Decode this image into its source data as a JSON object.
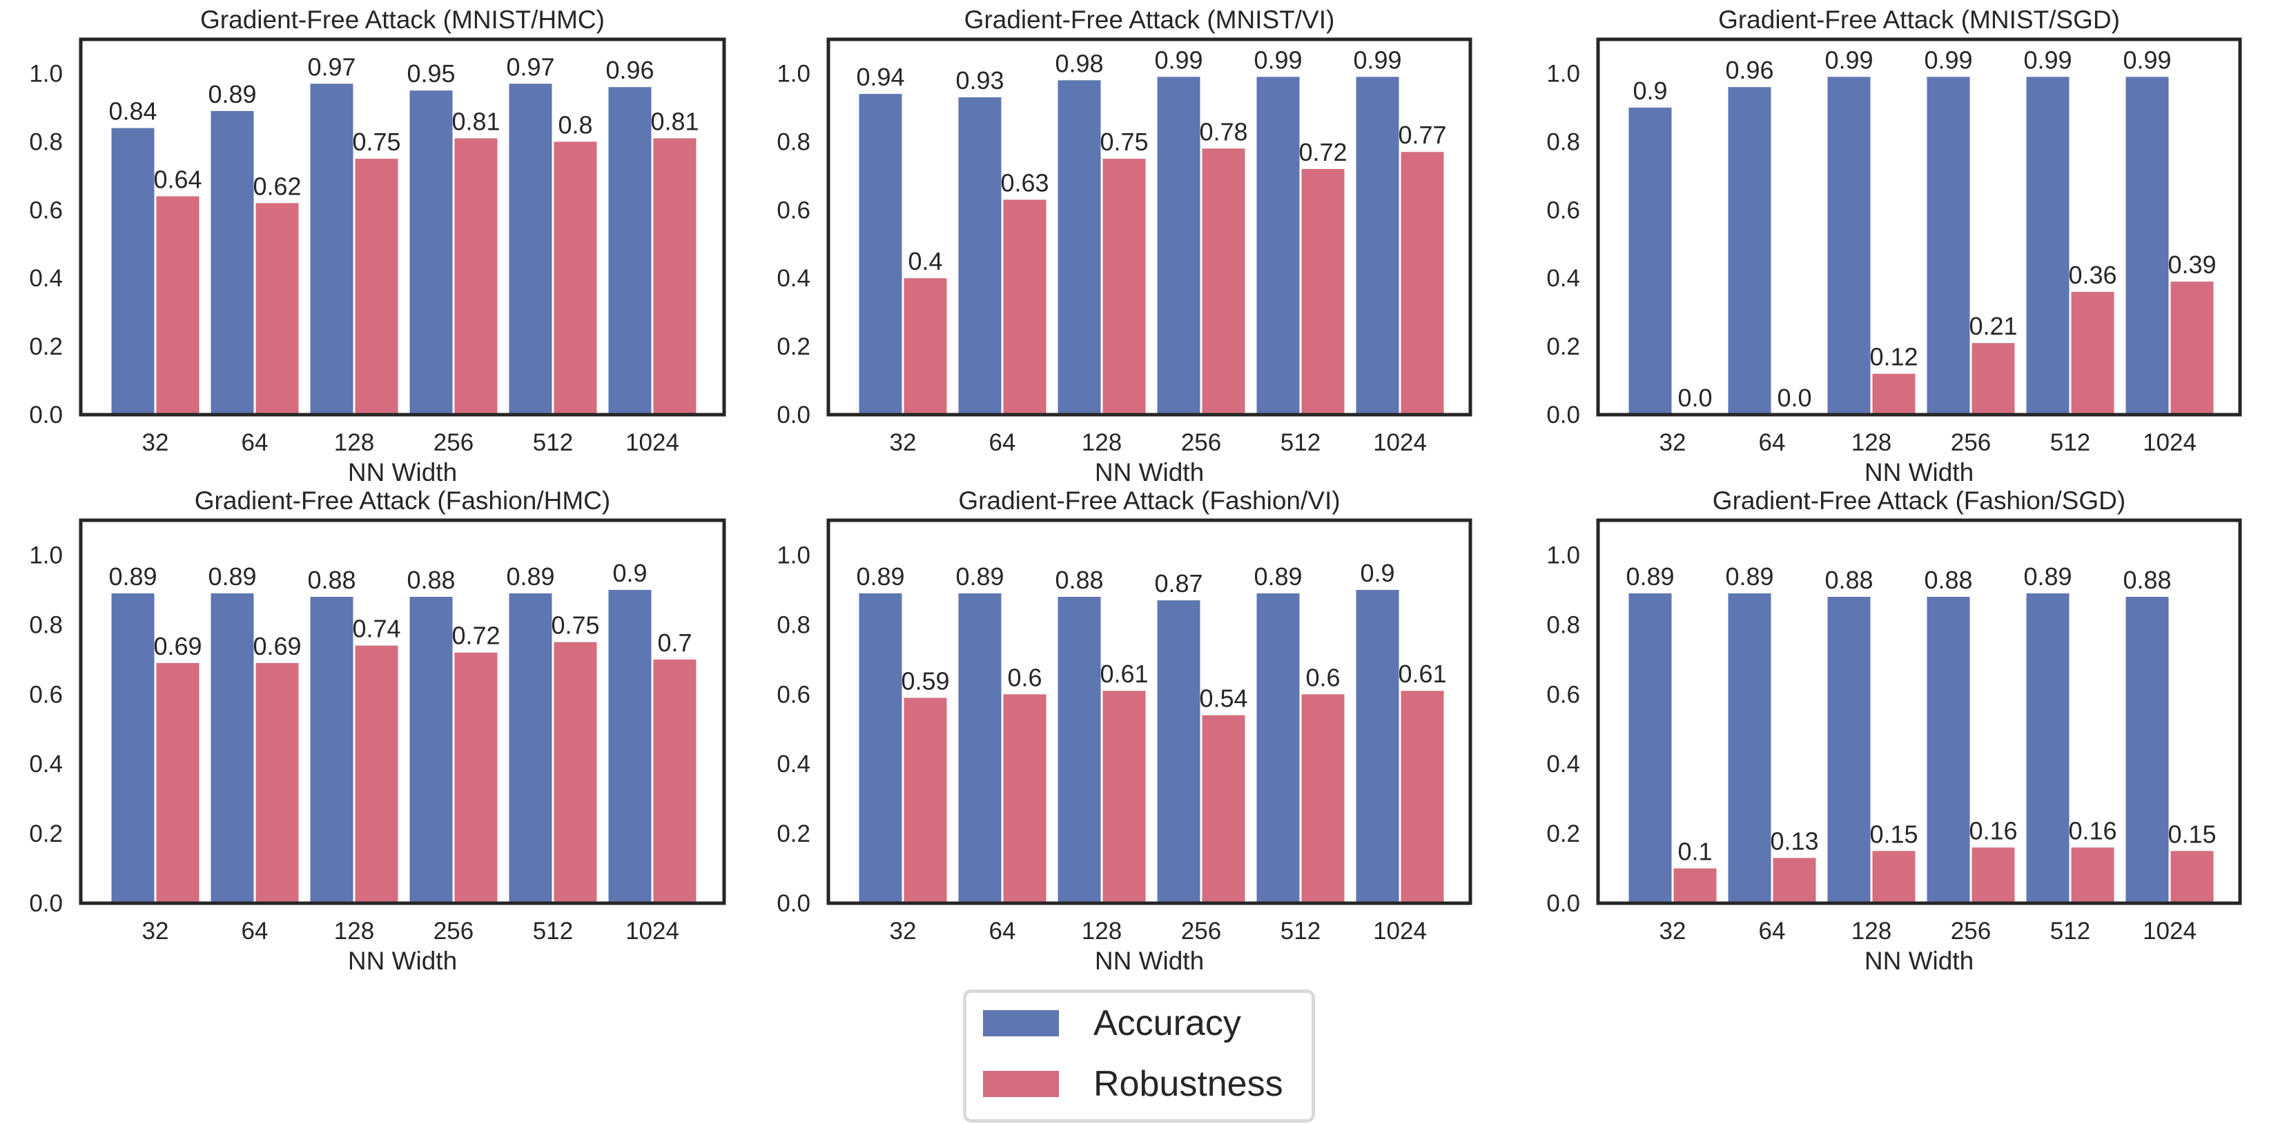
{
  "chart_data": [
    {
      "type": "bar",
      "title": "Gradient-Free Attack (MNIST/HMC)",
      "xlabel": "NN Width",
      "ylabel": "",
      "categories": [
        "32",
        "64",
        "128",
        "256",
        "512",
        "1024"
      ],
      "series": [
        {
          "name": "Accuracy",
          "values": [
            0.84,
            0.89,
            0.97,
            0.95,
            0.97,
            0.96
          ]
        },
        {
          "name": "Robustness",
          "values": [
            0.64,
            0.62,
            0.75,
            0.81,
            0.8,
            0.81
          ]
        }
      ],
      "labels": {
        "Accuracy": [
          "0.84",
          "0.89",
          "0.97",
          "0.95",
          "0.97",
          "0.96"
        ],
        "Robustness": [
          "0.64",
          "0.62",
          "0.75",
          "0.81",
          "0.8",
          "0.81"
        ]
      },
      "ylim": [
        0,
        1.1
      ],
      "yticks": [
        "0.0",
        "0.2",
        "0.4",
        "0.6",
        "0.8",
        "1.0"
      ],
      "grid": false
    },
    {
      "type": "bar",
      "title": "Gradient-Free Attack (MNIST/VI)",
      "xlabel": "NN Width",
      "ylabel": "",
      "categories": [
        "32",
        "64",
        "128",
        "256",
        "512",
        "1024"
      ],
      "series": [
        {
          "name": "Accuracy",
          "values": [
            0.94,
            0.93,
            0.98,
            0.99,
            0.99,
            0.99
          ]
        },
        {
          "name": "Robustness",
          "values": [
            0.4,
            0.63,
            0.75,
            0.78,
            0.72,
            0.77
          ]
        }
      ],
      "labels": {
        "Accuracy": [
          "0.94",
          "0.93",
          "0.98",
          "0.99",
          "0.99",
          "0.99"
        ],
        "Robustness": [
          "0.4",
          "0.63",
          "0.75",
          "0.78",
          "0.72",
          "0.77"
        ]
      },
      "ylim": [
        0,
        1.1
      ],
      "yticks": [
        "0.0",
        "0.2",
        "0.4",
        "0.6",
        "0.8",
        "1.0"
      ],
      "grid": false
    },
    {
      "type": "bar",
      "title": "Gradient-Free Attack (MNIST/SGD)",
      "xlabel": "NN Width",
      "ylabel": "",
      "categories": [
        "32",
        "64",
        "128",
        "256",
        "512",
        "1024"
      ],
      "series": [
        {
          "name": "Accuracy",
          "values": [
            0.9,
            0.96,
            0.99,
            0.99,
            0.99,
            0.99
          ]
        },
        {
          "name": "Robustness",
          "values": [
            0.0,
            0.0,
            0.12,
            0.21,
            0.36,
            0.39
          ]
        }
      ],
      "labels": {
        "Accuracy": [
          "0.9",
          "0.96",
          "0.99",
          "0.99",
          "0.99",
          "0.99"
        ],
        "Robustness": [
          "0.0",
          "0.0",
          "0.12",
          "0.21",
          "0.36",
          "0.39"
        ]
      },
      "ylim": [
        0,
        1.1
      ],
      "yticks": [
        "0.0",
        "0.2",
        "0.4",
        "0.6",
        "0.8",
        "1.0"
      ],
      "grid": false
    },
    {
      "type": "bar",
      "title": "Gradient-Free Attack (Fashion/HMC)",
      "xlabel": "NN Width",
      "ylabel": "",
      "categories": [
        "32",
        "64",
        "128",
        "256",
        "512",
        "1024"
      ],
      "series": [
        {
          "name": "Accuracy",
          "values": [
            0.89,
            0.89,
            0.88,
            0.88,
            0.89,
            0.9
          ]
        },
        {
          "name": "Robustness",
          "values": [
            0.69,
            0.69,
            0.74,
            0.72,
            0.75,
            0.7
          ]
        }
      ],
      "labels": {
        "Accuracy": [
          "0.89",
          "0.89",
          "0.88",
          "0.88",
          "0.89",
          "0.9"
        ],
        "Robustness": [
          "0.69",
          "0.69",
          "0.74",
          "0.72",
          "0.75",
          "0.7"
        ]
      },
      "ylim": [
        0,
        1.1
      ],
      "yticks": [
        "0.0",
        "0.2",
        "0.4",
        "0.6",
        "0.8",
        "1.0"
      ],
      "grid": false
    },
    {
      "type": "bar",
      "title": "Gradient-Free Attack (Fashion/VI)",
      "xlabel": "NN Width",
      "ylabel": "",
      "categories": [
        "32",
        "64",
        "128",
        "256",
        "512",
        "1024"
      ],
      "series": [
        {
          "name": "Accuracy",
          "values": [
            0.89,
            0.89,
            0.88,
            0.87,
            0.89,
            0.9
          ]
        },
        {
          "name": "Robustness",
          "values": [
            0.59,
            0.6,
            0.61,
            0.54,
            0.6,
            0.61
          ]
        }
      ],
      "labels": {
        "Accuracy": [
          "0.89",
          "0.89",
          "0.88",
          "0.87",
          "0.89",
          "0.9"
        ],
        "Robustness": [
          "0.59",
          "0.6",
          "0.61",
          "0.54",
          "0.6",
          "0.61"
        ]
      },
      "ylim": [
        0,
        1.1
      ],
      "yticks": [
        "0.0",
        "0.2",
        "0.4",
        "0.6",
        "0.8",
        "1.0"
      ],
      "grid": false
    },
    {
      "type": "bar",
      "title": "Gradient-Free Attack (Fashion/SGD)",
      "xlabel": "NN Width",
      "ylabel": "",
      "categories": [
        "32",
        "64",
        "128",
        "256",
        "512",
        "1024"
      ],
      "series": [
        {
          "name": "Accuracy",
          "values": [
            0.89,
            0.89,
            0.88,
            0.88,
            0.89,
            0.88
          ]
        },
        {
          "name": "Robustness",
          "values": [
            0.1,
            0.13,
            0.15,
            0.16,
            0.16,
            0.15
          ]
        }
      ],
      "labels": {
        "Accuracy": [
          "0.89",
          "0.89",
          "0.88",
          "0.88",
          "0.89",
          "0.88"
        ],
        "Robustness": [
          "0.1",
          "0.13",
          "0.15",
          "0.16",
          "0.16",
          "0.15"
        ]
      },
      "ylim": [
        0,
        1.1
      ],
      "yticks": [
        "0.0",
        "0.2",
        "0.4",
        "0.6",
        "0.8",
        "1.0"
      ],
      "grid": false
    }
  ],
  "legend": {
    "placement": "bottom-center",
    "items": [
      {
        "label": "Accuracy",
        "color": "#5e76b1"
      },
      {
        "label": "Robustness",
        "color": "#d56d7e"
      }
    ]
  },
  "colors": {
    "Accuracy": "#5e76b1",
    "Robustness": "#d56d7e",
    "axis": "#262626",
    "legend_border": "#d9d9d9"
  }
}
